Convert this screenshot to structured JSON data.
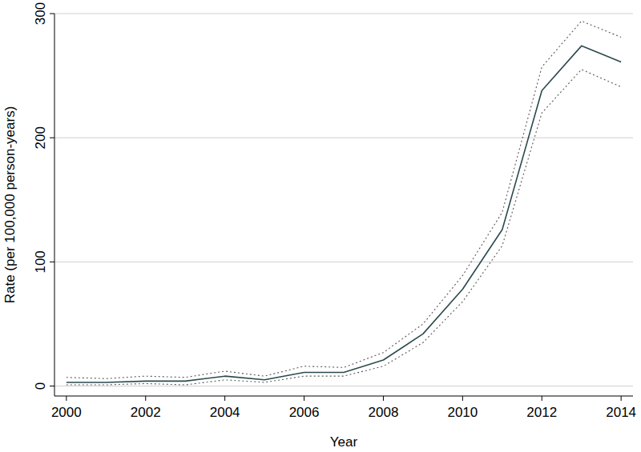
{
  "chart_data": {
    "type": "line",
    "x_label": "Year",
    "y_label": "Rate (per 100,000 person-years)",
    "x": [
      2000,
      2001,
      2002,
      2003,
      2004,
      2005,
      2006,
      2007,
      2008,
      2009,
      2010,
      2011,
      2012,
      2013,
      2014
    ],
    "xlim": [
      1999.7,
      2014.3
    ],
    "xticks": [
      2000,
      2002,
      2004,
      2006,
      2008,
      2010,
      2012,
      2014
    ],
    "ylim": [
      -8,
      300
    ],
    "yticks": [
      0,
      100,
      200,
      300
    ],
    "grid": true,
    "series": [
      {
        "color": "#2b4a4e",
        "line_style": "solid",
        "values": [
          3,
          3,
          4,
          4,
          8,
          5,
          11,
          11,
          21,
          42,
          78,
          126,
          238,
          274,
          261
        ]
      },
      {
        "color": "#5a5a5a",
        "line_style": "dotted",
        "values": [
          7,
          6,
          8,
          7,
          12,
          8,
          16,
          15,
          27,
          50,
          89,
          140,
          257,
          294,
          281
        ]
      },
      {
        "color": "#5a5a5a",
        "line_style": "dotted",
        "values": [
          1,
          1,
          2,
          1,
          5,
          3,
          8,
          8,
          16,
          35,
          68,
          113,
          220,
          255,
          241
        ]
      }
    ]
  }
}
